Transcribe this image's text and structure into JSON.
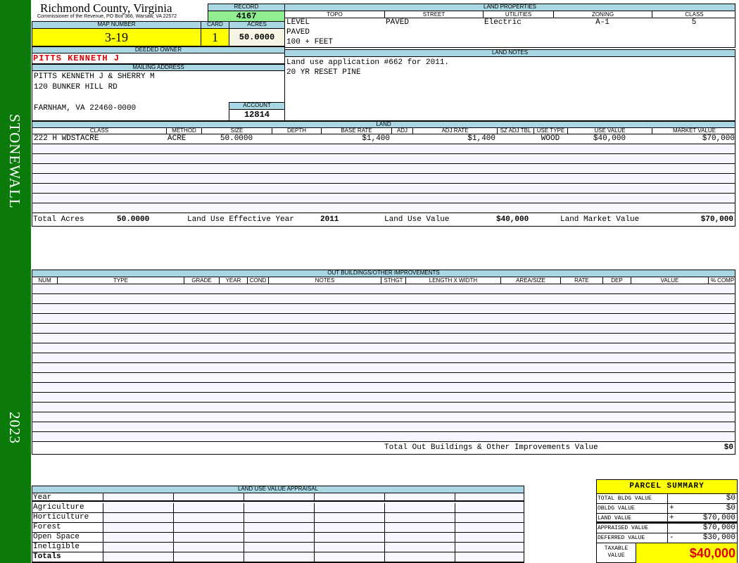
{
  "sidebar": {
    "district": "STONEWALL",
    "year": "2023"
  },
  "header": {
    "county": "Richmond County, Virginia",
    "subtitle": "Commissioner of the Revenue, PO Box 366, Warsaw, VA 22572",
    "record_label": "RECORD",
    "record": "4167"
  },
  "parcel": {
    "map_label": "MAP NUMBER",
    "map_number": "3-19",
    "card_label": "CARD",
    "card": "1",
    "acres_label": "ACRES",
    "acres": "50.0000",
    "owner_label": "DEEDED OWNER",
    "owner": "PITTS KENNETH J",
    "mailing_label": "MAILING ADDRESS",
    "mailing": [
      "PITTS KENNETH J & SHERRY M",
      "120 BUNKER HILL RD",
      "",
      "FARNHAM, VA 22460-0000"
    ],
    "account_label": "ACCOUNT",
    "account": "12814"
  },
  "land_properties": {
    "label": "LAND PROPERTIES",
    "headers": [
      "TOPO",
      "STREET",
      "UTILITIES",
      "ZONING",
      "CLASS"
    ],
    "rows": [
      [
        "LEVEL",
        "PAVED",
        "Electric",
        "A-1",
        "5"
      ],
      [
        "PAVED",
        "",
        "",
        "",
        ""
      ],
      [
        "100 + FEET",
        "",
        "",
        "",
        ""
      ]
    ]
  },
  "land_notes": {
    "label": "LAND NOTES",
    "lines": [
      "Land use application #662 for 2011.",
      "20 YR RESET PINE"
    ]
  },
  "land": {
    "label": "LAND",
    "headers": [
      "CLASS",
      "METHOD",
      "SIZE",
      "DEPTH",
      "BASE RATE",
      "ADJ",
      "ADJ RATE",
      "SZ ADJ TBL",
      "USE TYPE",
      "USE VALUE",
      "MARKET VALUE"
    ],
    "rows": [
      [
        "222 H WDSTACRE",
        "ACRE",
        "50.0000",
        "",
        "$1,400",
        "",
        "$1,400",
        "",
        "WOOD",
        "$40,000",
        "$70,000"
      ]
    ],
    "totals": {
      "acres_label": "Total Acres",
      "acres": "50.0000",
      "year_label": "Land Use Effective Year",
      "year": "2011",
      "use_label": "Land Use Value",
      "use": "$40,000",
      "market_label": "Land Market Value",
      "market": "$70,000"
    }
  },
  "outbuildings": {
    "label": "OUT BUILDINGS/OTHER IMPROVEMENTS",
    "headers": [
      "NUM",
      "TYPE",
      "GRADE",
      "YEAR",
      "COND",
      "NOTES",
      "STHGT",
      "LENGTH X WIDTH",
      "AREA/SIZE",
      "RATE",
      "DEP",
      "VALUE",
      "% COMP"
    ],
    "total_label": "Total Out Buildings & Other Improvements Value",
    "total": "$0"
  },
  "land_use": {
    "label": "LAND USE VALUE APPRAISAL",
    "year_label": "Year",
    "rows": [
      "Agriculture",
      "Horticulture",
      "Forest",
      "Open Space",
      "Ineligible"
    ],
    "totals_label": "Totals"
  },
  "summary": {
    "title": "PARCEL SUMMARY",
    "rows": [
      {
        "label": "TOTAL BLDG VALUE",
        "op": "",
        "value": "$0"
      },
      {
        "label": "OBLDG VALUE",
        "op": "+",
        "value": "$0"
      },
      {
        "label": "LAND VALUE",
        "op": "+",
        "value": "$70,000"
      },
      {
        "label": "APPRAISED VALUE",
        "op": "",
        "value": "$70,000"
      },
      {
        "label": "DEFERRED VALUE",
        "op": "-",
        "value": "$30,000"
      }
    ],
    "taxable_label": "TAXABLE VALUE",
    "taxable": "$40,000"
  },
  "colors": {
    "green": "#0b7a0b",
    "header_blue": "#a9d8e4",
    "yellow": "#ffff00",
    "record_green": "#90ee90",
    "owner_red": "#e00000"
  }
}
